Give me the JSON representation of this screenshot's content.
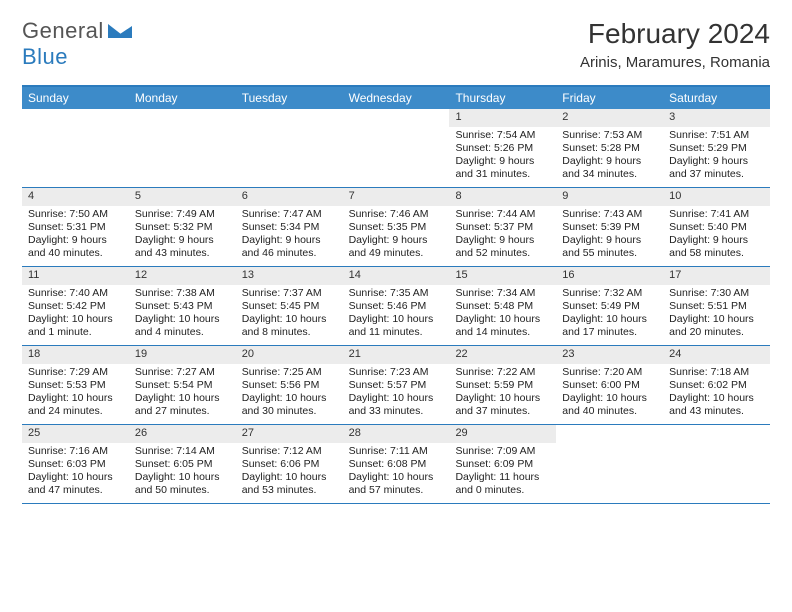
{
  "logo": {
    "text1": "General",
    "text2": "Blue"
  },
  "title": "February 2024",
  "location": "Arinis, Maramures, Romania",
  "colors": {
    "header_bar": "#3d8bc9",
    "header_text": "#ffffff",
    "rule": "#2b7bbd",
    "daynum_bg": "#ececec",
    "body_text": "#222222",
    "title_text": "#333333"
  },
  "weekdays": [
    "Sunday",
    "Monday",
    "Tuesday",
    "Wednesday",
    "Thursday",
    "Friday",
    "Saturday"
  ],
  "weeks": [
    [
      {
        "n": "",
        "empty": true
      },
      {
        "n": "",
        "empty": true
      },
      {
        "n": "",
        "empty": true
      },
      {
        "n": "",
        "empty": true
      },
      {
        "n": "1",
        "sr": "7:54 AM",
        "ss": "5:26 PM",
        "dl": "9 hours and 31 minutes."
      },
      {
        "n": "2",
        "sr": "7:53 AM",
        "ss": "5:28 PM",
        "dl": "9 hours and 34 minutes."
      },
      {
        "n": "3",
        "sr": "7:51 AM",
        "ss": "5:29 PM",
        "dl": "9 hours and 37 minutes."
      }
    ],
    [
      {
        "n": "4",
        "sr": "7:50 AM",
        "ss": "5:31 PM",
        "dl": "9 hours and 40 minutes."
      },
      {
        "n": "5",
        "sr": "7:49 AM",
        "ss": "5:32 PM",
        "dl": "9 hours and 43 minutes."
      },
      {
        "n": "6",
        "sr": "7:47 AM",
        "ss": "5:34 PM",
        "dl": "9 hours and 46 minutes."
      },
      {
        "n": "7",
        "sr": "7:46 AM",
        "ss": "5:35 PM",
        "dl": "9 hours and 49 minutes."
      },
      {
        "n": "8",
        "sr": "7:44 AM",
        "ss": "5:37 PM",
        "dl": "9 hours and 52 minutes."
      },
      {
        "n": "9",
        "sr": "7:43 AM",
        "ss": "5:39 PM",
        "dl": "9 hours and 55 minutes."
      },
      {
        "n": "10",
        "sr": "7:41 AM",
        "ss": "5:40 PM",
        "dl": "9 hours and 58 minutes."
      }
    ],
    [
      {
        "n": "11",
        "sr": "7:40 AM",
        "ss": "5:42 PM",
        "dl": "10 hours and 1 minute."
      },
      {
        "n": "12",
        "sr": "7:38 AM",
        "ss": "5:43 PM",
        "dl": "10 hours and 4 minutes."
      },
      {
        "n": "13",
        "sr": "7:37 AM",
        "ss": "5:45 PM",
        "dl": "10 hours and 8 minutes."
      },
      {
        "n": "14",
        "sr": "7:35 AM",
        "ss": "5:46 PM",
        "dl": "10 hours and 11 minutes."
      },
      {
        "n": "15",
        "sr": "7:34 AM",
        "ss": "5:48 PM",
        "dl": "10 hours and 14 minutes."
      },
      {
        "n": "16",
        "sr": "7:32 AM",
        "ss": "5:49 PM",
        "dl": "10 hours and 17 minutes."
      },
      {
        "n": "17",
        "sr": "7:30 AM",
        "ss": "5:51 PM",
        "dl": "10 hours and 20 minutes."
      }
    ],
    [
      {
        "n": "18",
        "sr": "7:29 AM",
        "ss": "5:53 PM",
        "dl": "10 hours and 24 minutes."
      },
      {
        "n": "19",
        "sr": "7:27 AM",
        "ss": "5:54 PM",
        "dl": "10 hours and 27 minutes."
      },
      {
        "n": "20",
        "sr": "7:25 AM",
        "ss": "5:56 PM",
        "dl": "10 hours and 30 minutes."
      },
      {
        "n": "21",
        "sr": "7:23 AM",
        "ss": "5:57 PM",
        "dl": "10 hours and 33 minutes."
      },
      {
        "n": "22",
        "sr": "7:22 AM",
        "ss": "5:59 PM",
        "dl": "10 hours and 37 minutes."
      },
      {
        "n": "23",
        "sr": "7:20 AM",
        "ss": "6:00 PM",
        "dl": "10 hours and 40 minutes."
      },
      {
        "n": "24",
        "sr": "7:18 AM",
        "ss": "6:02 PM",
        "dl": "10 hours and 43 minutes."
      }
    ],
    [
      {
        "n": "25",
        "sr": "7:16 AM",
        "ss": "6:03 PM",
        "dl": "10 hours and 47 minutes."
      },
      {
        "n": "26",
        "sr": "7:14 AM",
        "ss": "6:05 PM",
        "dl": "10 hours and 50 minutes."
      },
      {
        "n": "27",
        "sr": "7:12 AM",
        "ss": "6:06 PM",
        "dl": "10 hours and 53 minutes."
      },
      {
        "n": "28",
        "sr": "7:11 AM",
        "ss": "6:08 PM",
        "dl": "10 hours and 57 minutes."
      },
      {
        "n": "29",
        "sr": "7:09 AM",
        "ss": "6:09 PM",
        "dl": "11 hours and 0 minutes."
      },
      {
        "n": "",
        "empty": true
      },
      {
        "n": "",
        "empty": true
      }
    ]
  ],
  "labels": {
    "sunrise": "Sunrise: ",
    "sunset": "Sunset: ",
    "daylight": "Daylight: "
  }
}
